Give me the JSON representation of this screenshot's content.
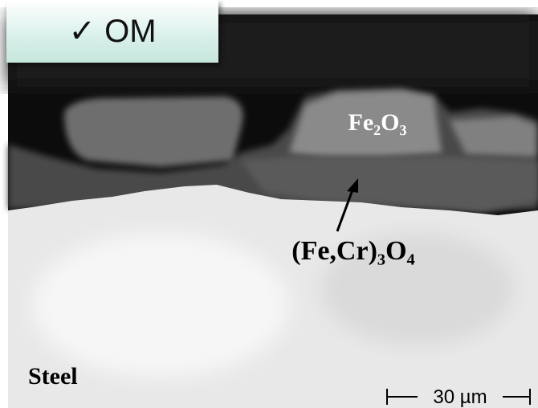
{
  "header": {
    "label": "✓ OM"
  },
  "labels": {
    "outer_oxide": "Fe₂O₃",
    "inner_oxide": "(Fe,Cr)₃O₄",
    "substrate": "Steel"
  },
  "scale_bar": {
    "label": "30 µm"
  }
}
